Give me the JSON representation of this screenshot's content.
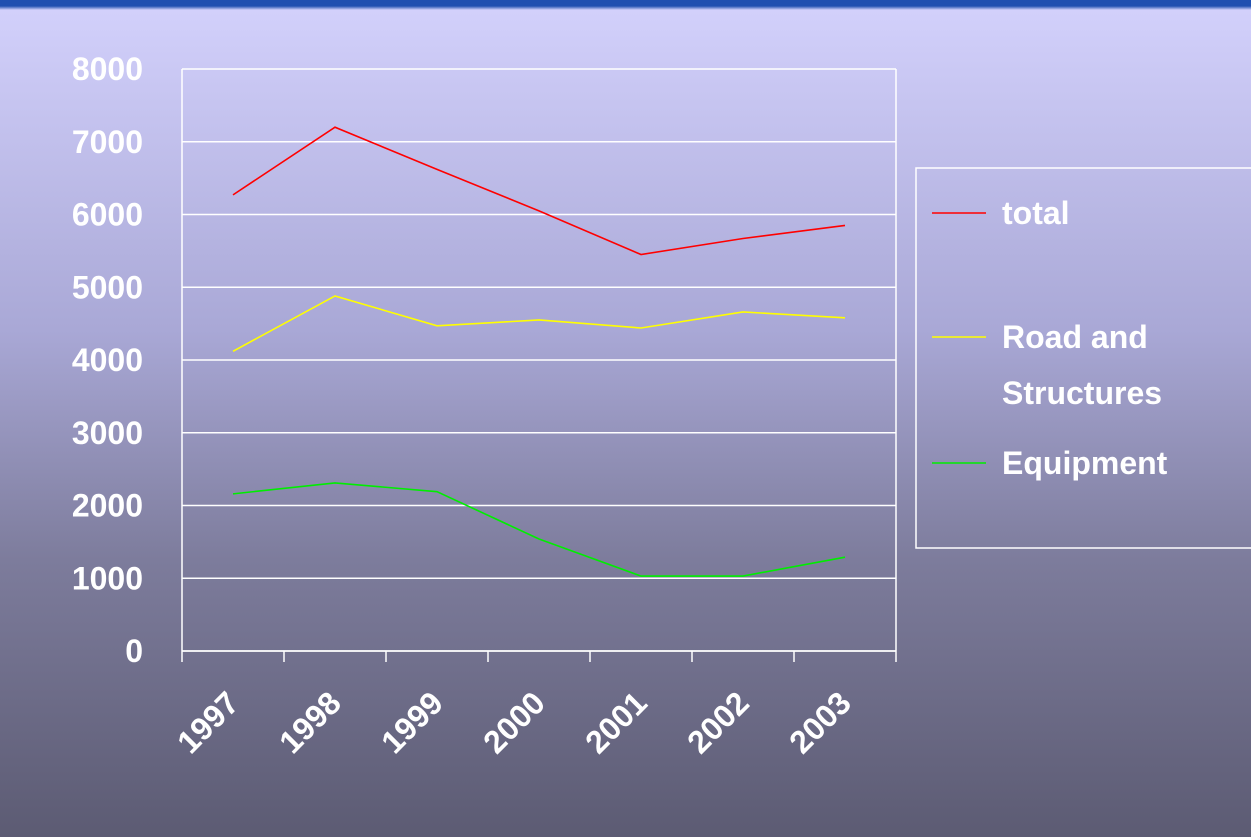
{
  "chart_data": {
    "type": "line",
    "categories": [
      "1997",
      "1998",
      "1999",
      "2000",
      "2001",
      "2002",
      "2003"
    ],
    "series": [
      {
        "name": "total",
        "color": "#ff0000",
        "values": [
          6270,
          7200,
          6620,
          6050,
          5450,
          5670,
          5850
        ]
      },
      {
        "name": "Road and Structures",
        "color": "#ffff00",
        "values": [
          4120,
          4880,
          4470,
          4550,
          4440,
          4660,
          4580
        ]
      },
      {
        "name": "Equipment",
        "color": "#00ee00",
        "values": [
          2160,
          2310,
          2190,
          1540,
          1030,
          1030,
          1290
        ]
      }
    ],
    "ylim": [
      0,
      8000
    ],
    "yticks": [
      0,
      1000,
      2000,
      3000,
      4000,
      5000,
      6000,
      7000,
      8000
    ],
    "grid": true,
    "legend": "right"
  }
}
